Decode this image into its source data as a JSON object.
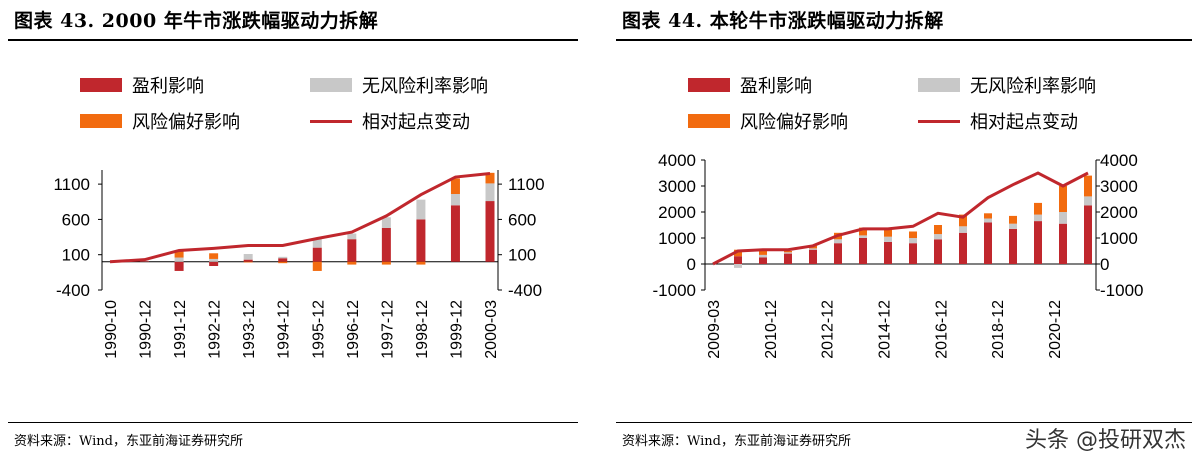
{
  "panels": [
    {
      "title": "图表 43. 2000 年牛市涨跌幅驱动力拆解",
      "source": "资料来源：Wind，东亚前海证券研究所",
      "legend": [
        "盈利影响",
        "无风险利率影响",
        "风险偏好影响",
        "相对起点变动"
      ]
    },
    {
      "title": "图表 44. 本轮牛市涨跌幅驱动力拆解",
      "source": "资料来源：Wind，东亚前海证券研究所",
      "legend": [
        "盈利影响",
        "无风险利率影响",
        "风险偏好影响",
        "相对起点变动"
      ]
    }
  ],
  "watermark": "头条 @投研双杰",
  "colors": {
    "earnings": "#c0272d",
    "riskfree": "#c8c8c8",
    "riskpref": "#f26b0f",
    "line": "#c0272d"
  },
  "chart_data": [
    {
      "type": "bar",
      "stacked": true,
      "xtick_labels": [
        "1990-10",
        "1990-12",
        "1991-12",
        "1992-12",
        "1993-12",
        "1994-12",
        "1995-12",
        "1996-12",
        "1997-12",
        "1998-12",
        "1999-12",
        "2000-03"
      ],
      "yticks": [
        1100,
        600,
        100,
        -400
      ],
      "ylim": [
        -400,
        1300
      ],
      "series": [
        {
          "name": "盈利影响",
          "values": [
            0,
            10,
            -130,
            -60,
            30,
            50,
            200,
            320,
            480,
            600,
            800,
            860
          ]
        },
        {
          "name": "无风险利率影响",
          "values": [
            0,
            5,
            60,
            40,
            80,
            20,
            120,
            80,
            150,
            280,
            160,
            250
          ]
        },
        {
          "name": "风险偏好影响",
          "values": [
            0,
            0,
            100,
            80,
            -10,
            -20,
            -130,
            -40,
            -40,
            -40,
            220,
            150
          ]
        },
        {
          "name": "相对起点变动",
          "type": "line",
          "values": [
            0,
            30,
            160,
            190,
            230,
            230,
            330,
            420,
            650,
            950,
            1200,
            1250
          ]
        }
      ]
    },
    {
      "type": "bar",
      "stacked": true,
      "xtick_labels": [
        "2009-03",
        "2010-12",
        "2012-12",
        "2014-12",
        "2016-12",
        "2018-12",
        "2020-12"
      ],
      "yticks": [
        4000,
        3000,
        2000,
        1000,
        0,
        -1000
      ],
      "ylim": [
        -1000,
        4000
      ],
      "series": [
        {
          "name": "盈利影响",
          "values": [
            0,
            300,
            250,
            400,
            550,
            800,
            1000,
            850,
            800,
            950,
            1200,
            1600,
            1350,
            1650,
            1550,
            2250
          ]
        },
        {
          "name": "无风险利率影响",
          "values": [
            0,
            -150,
            100,
            50,
            50,
            150,
            100,
            200,
            200,
            200,
            250,
            150,
            200,
            250,
            450,
            350
          ]
        },
        {
          "name": "风险偏好影响",
          "values": [
            0,
            250,
            200,
            50,
            100,
            250,
            300,
            350,
            250,
            350,
            450,
            200,
            300,
            450,
            1000,
            800
          ]
        },
        {
          "name": "相对起点变动",
          "type": "line",
          "values": [
            0,
            500,
            550,
            550,
            700,
            1100,
            1350,
            1350,
            1450,
            1950,
            1800,
            2550,
            3050,
            3500,
            3000,
            3500
          ]
        }
      ]
    }
  ]
}
